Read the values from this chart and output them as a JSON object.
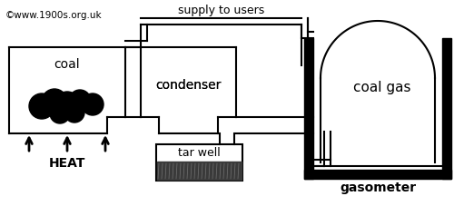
{
  "bg_color": "#ffffff",
  "line_color": "#000000",
  "copyright_text": "©www.1900s.org.uk",
  "supply_text": "supply to users",
  "coal_text": "coal",
  "condenser_text": "condenser",
  "coal_gas_text": "coal gas",
  "gasometer_text": "gasometer",
  "tar_well_text": "tar well",
  "heat_text": "HEAT",
  "fig_width": 5.0,
  "fig_height": 2.27,
  "dpi": 100
}
